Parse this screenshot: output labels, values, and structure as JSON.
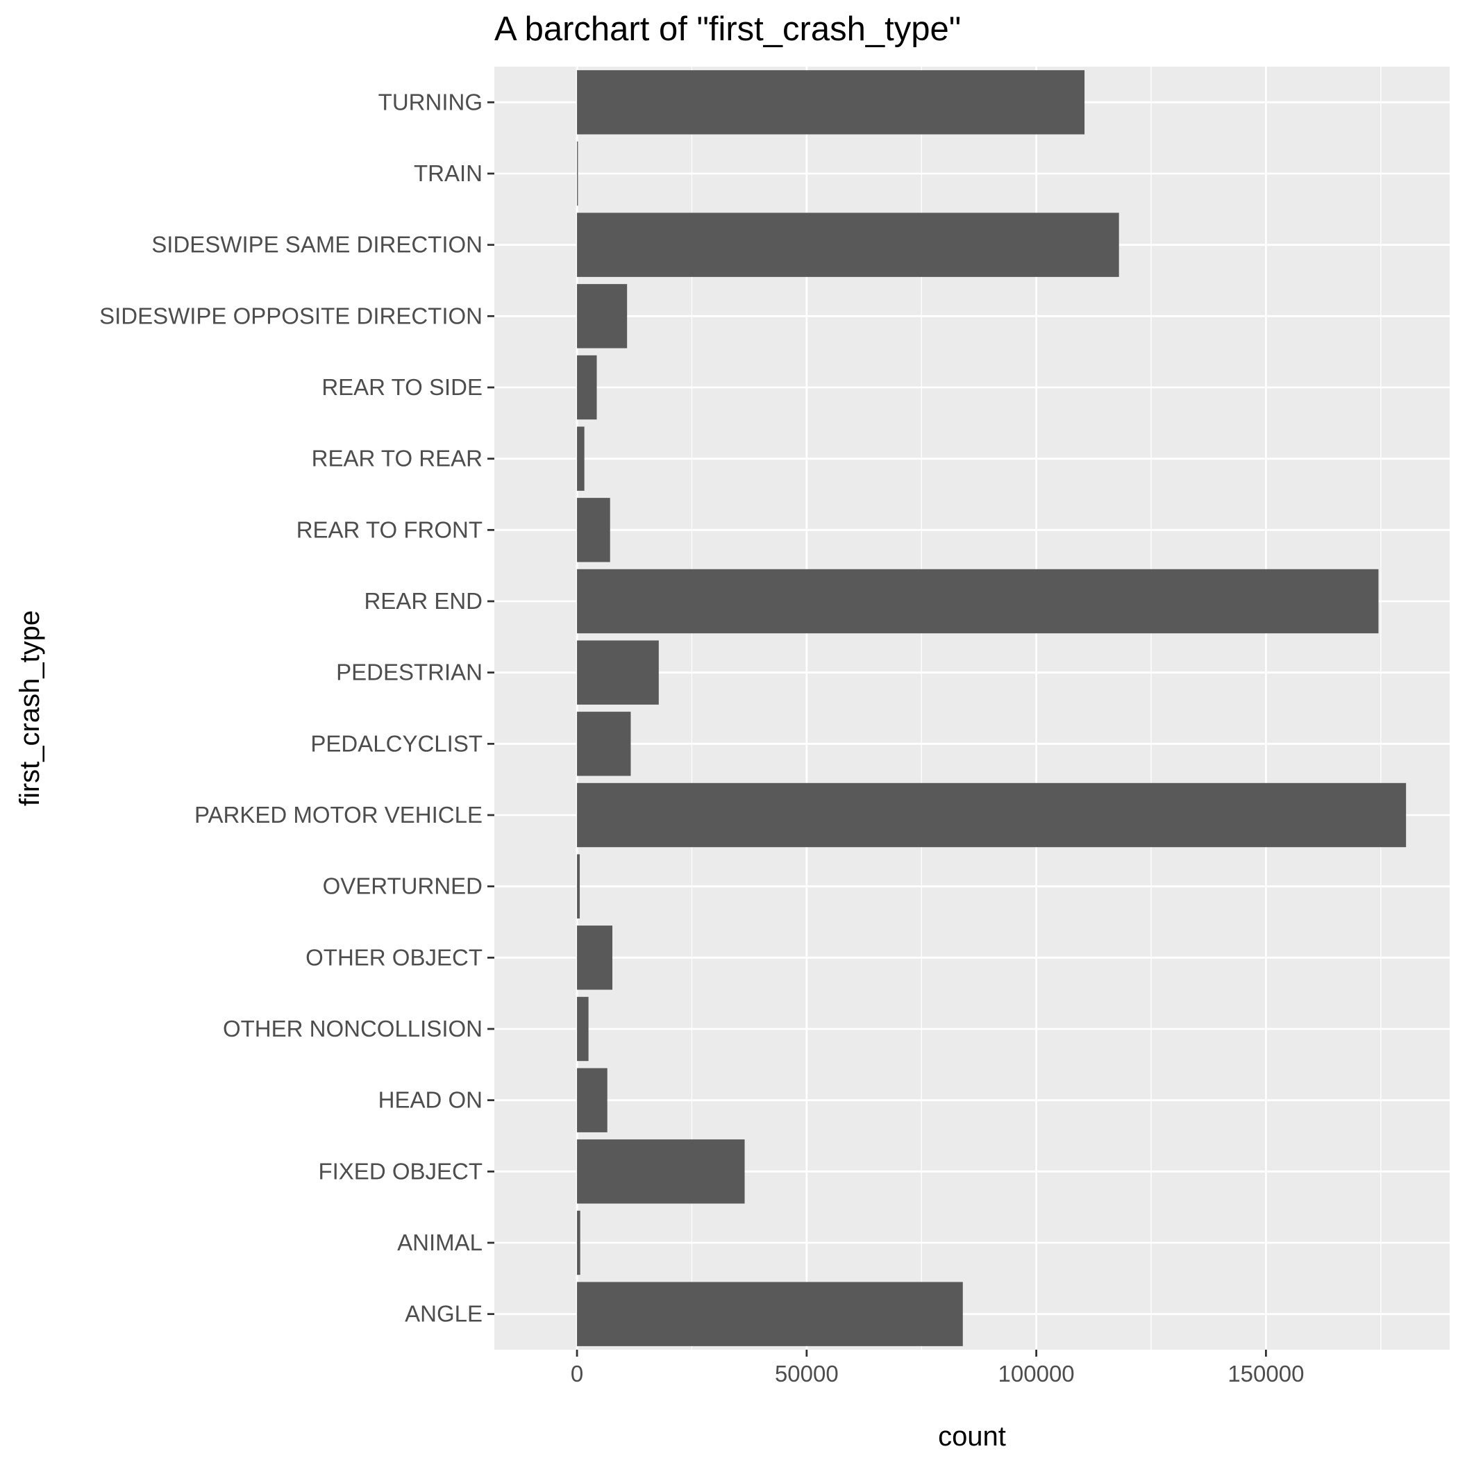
{
  "chart_data": {
    "type": "bar",
    "orientation": "horizontal",
    "title": "A barchart of \"first_crash_type\"",
    "xlabel": "count",
    "ylabel": "first_crash_type",
    "xlim": [
      -18000,
      190000
    ],
    "xticks": [
      0,
      50000,
      100000,
      150000
    ],
    "grid": true,
    "categories": [
      "ANGLE",
      "ANIMAL",
      "FIXED OBJECT",
      "HEAD ON",
      "OTHER NONCOLLISION",
      "OTHER OBJECT",
      "OVERTURNED",
      "PARKED MOTOR VEHICLE",
      "PEDALCYCLIST",
      "PEDESTRIAN",
      "REAR END",
      "REAR TO FRONT",
      "REAR TO REAR",
      "REAR TO SIDE",
      "SIDESWIPE OPPOSITE DIRECTION",
      "SIDESWIPE SAME DIRECTION",
      "TRAIN",
      "TURNING"
    ],
    "values": [
      84000,
      700,
      36500,
      6600,
      2500,
      7700,
      600,
      180500,
      11700,
      17800,
      174500,
      7200,
      1600,
      4300,
      10900,
      118000,
      200,
      110500
    ],
    "bar_color": "#595959",
    "panel_color": "#ebebeb",
    "grid_color": "#ffffff"
  }
}
